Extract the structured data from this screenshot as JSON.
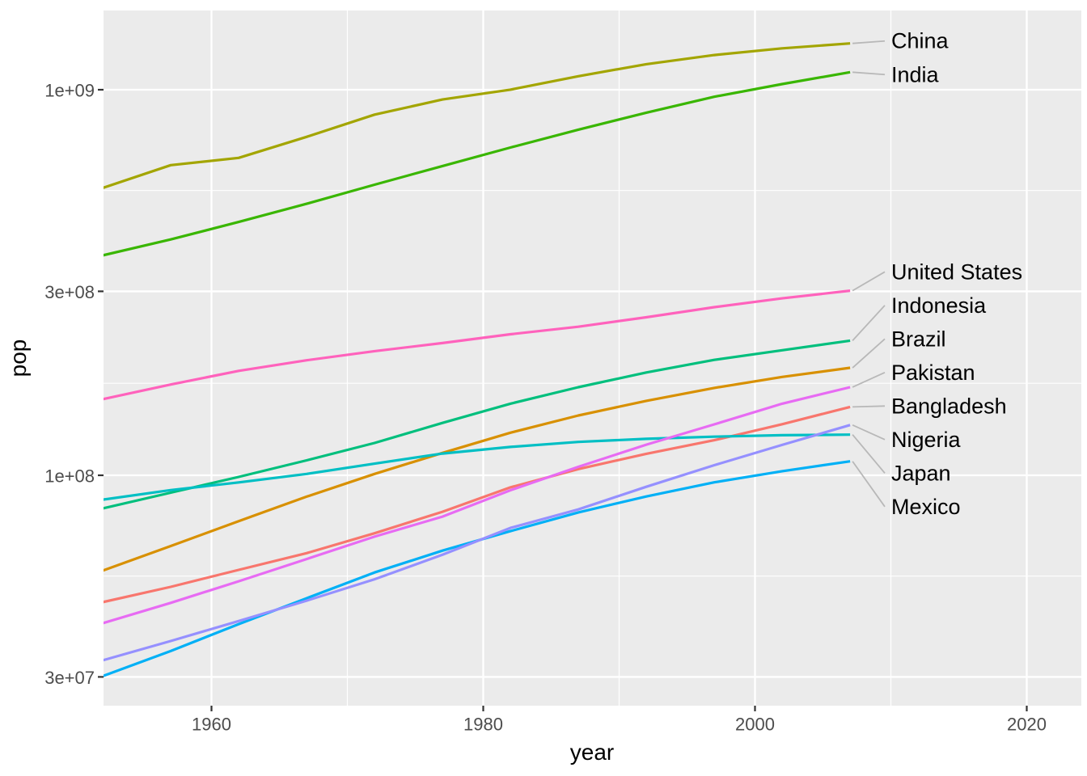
{
  "chart_data": {
    "type": "line",
    "title": "",
    "xlabel": "year",
    "ylabel": "pop",
    "x_scale": "linear",
    "y_scale": "log10",
    "grid": true,
    "panel_bg": "#EBEBEB",
    "grid_color": "#FFFFFF",
    "tick_color": "#333333",
    "tick_label_color": "#4D4D4D",
    "leader_color": "#B8B8B8",
    "legend": "direct labels at right edge of lines",
    "xlim_displayed": [
      1952,
      2024
    ],
    "ylim_displayed": [
      25000000,
      1600000000
    ],
    "x_ticks": [
      1960,
      1980,
      2000,
      2020
    ],
    "x_minor_ticks": [
      1970,
      1990,
      2010
    ],
    "y_ticks": [
      {
        "label": "3e+07",
        "value": 30000000
      },
      {
        "label": "1e+08",
        "value": 100000000
      },
      {
        "label": "3e+08",
        "value": 300000000
      },
      {
        "label": "1e+09",
        "value": 1000000000
      }
    ],
    "x": [
      1952,
      1957,
      1962,
      1967,
      1972,
      1977,
      1982,
      1987,
      1992,
      1997,
      2002,
      2007
    ],
    "series": [
      {
        "name": "Bangladesh",
        "color": "#F8766D",
        "values": [
          46886859,
          51365468,
          56839289,
          62821884,
          70759295,
          80428306,
          93074406,
          103764241,
          113704579,
          123315288,
          135656790,
          150448339
        ]
      },
      {
        "name": "Brazil",
        "color": "#D89000",
        "values": [
          56602560,
          65551171,
          76039390,
          88049823,
          100840058,
          114313951,
          128962939,
          142938076,
          155975974,
          168546719,
          179914212,
          190010647
        ]
      },
      {
        "name": "China",
        "color": "#A3A500",
        "values": [
          556263527,
          637408000,
          665770000,
          754550000,
          862030000,
          943455000,
          1000281000,
          1084035000,
          1164970000,
          1230075000,
          1280400000,
          1318683096
        ]
      },
      {
        "name": "India",
        "color": "#39B600",
        "values": [
          372000000,
          409000000,
          454000000,
          506000000,
          567000000,
          634000000,
          708000000,
          788000000,
          872000000,
          959000000,
          1034172547,
          1110396331
        ]
      },
      {
        "name": "Indonesia",
        "color": "#00BF7D",
        "values": [
          82052000,
          90124000,
          99028000,
          109343000,
          121282000,
          136725000,
          153343000,
          169276000,
          184816000,
          199278000,
          211060000,
          223547000
        ]
      },
      {
        "name": "Japan",
        "color": "#00BFC4",
        "values": [
          86459025,
          91563009,
          95831757,
          100825279,
          107188273,
          113872473,
          118454974,
          122091325,
          124329269,
          125956499,
          127065841,
          127467972
        ]
      },
      {
        "name": "Mexico",
        "color": "#00B0F6",
        "values": [
          30144317,
          35015548,
          41121485,
          47995559,
          55984374,
          63759976,
          71640904,
          80122492,
          88111030,
          95895146,
          102479927,
          108700891
        ]
      },
      {
        "name": "Nigeria",
        "color": "#9590FF",
        "values": [
          33119096,
          37173340,
          41871351,
          47287752,
          53740085,
          62209173,
          73039376,
          81551520,
          93364244,
          106207839,
          119901274,
          135031164
        ]
      },
      {
        "name": "Pakistan",
        "color": "#E76BF3",
        "values": [
          41346560,
          46679944,
          53100671,
          60641899,
          69325921,
          78152686,
          91462088,
          105186881,
          120065004,
          135564834,
          153403524,
          169270617
        ]
      },
      {
        "name": "United States",
        "color": "#FF62BC",
        "values": [
          157553000,
          171984000,
          186538000,
          198712000,
          209896000,
          220239000,
          232187835,
          242803533,
          256894189,
          272911760,
          287675526,
          301139947
        ]
      }
    ]
  }
}
